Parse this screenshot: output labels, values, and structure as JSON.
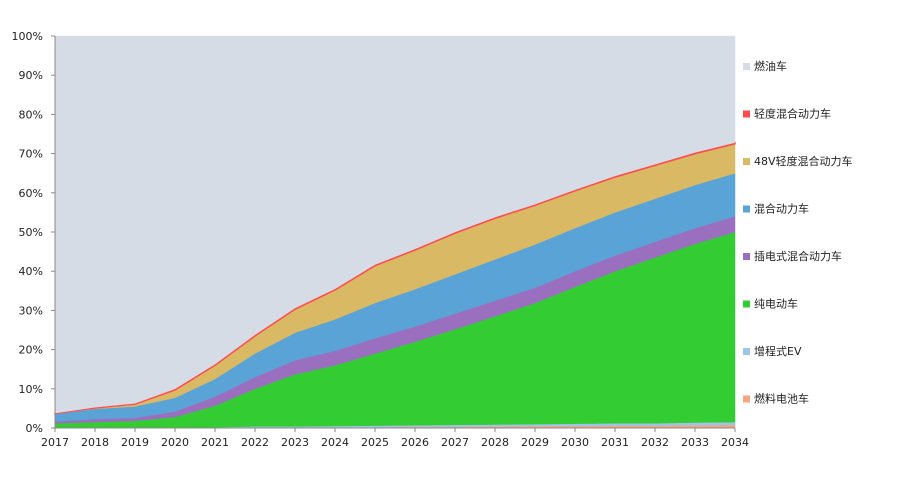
{
  "chart_data": {
    "type": "area",
    "stacked": true,
    "x": [
      "2017",
      "2018",
      "2019",
      "2020",
      "2021",
      "2022",
      "2023",
      "2024",
      "2025",
      "2026",
      "2027",
      "2028",
      "2029",
      "2030",
      "2031",
      "2032",
      "2033",
      "2034"
    ],
    "ylim": [
      0,
      100
    ],
    "yticks": [
      "0%",
      "10%",
      "20%",
      "30%",
      "40%",
      "50%",
      "60%",
      "70%",
      "80%",
      "90%",
      "100%"
    ],
    "grid": false,
    "legend_position": "right",
    "series": [
      {
        "name": "燃料电池车",
        "color": "#f4a582",
        "values": [
          0,
          0,
          0,
          0,
          0,
          0.1,
          0.1,
          0.2,
          0.2,
          0.3,
          0.3,
          0.4,
          0.5,
          0.5,
          0.6,
          0.6,
          0.7,
          0.8
        ]
      },
      {
        "name": "增程式EV",
        "color": "#9ec5e6",
        "values": [
          0,
          0,
          0,
          0,
          0.2,
          0.3,
          0.3,
          0.3,
          0.4,
          0.4,
          0.5,
          0.5,
          0.5,
          0.6,
          0.6,
          0.6,
          0.7,
          0.7
        ]
      },
      {
        "name": "纯电动车",
        "color": "#33cc33",
        "values": [
          1.2,
          1.5,
          1.8,
          2.8,
          5.5,
          9.6,
          13.3,
          15.5,
          18.4,
          21.3,
          24.4,
          27.6,
          30.9,
          34.9,
          38.8,
          42.3,
          45.6,
          48.5
        ]
      },
      {
        "name": "插电式混合动力车",
        "color": "#9b6fc0",
        "values": [
          0.5,
          0.8,
          0.8,
          1.4,
          2.3,
          3.0,
          3.6,
          3.7,
          3.9,
          3.9,
          4.0,
          4.0,
          3.9,
          4.0,
          4.0,
          4.0,
          4.0,
          4.0
        ]
      },
      {
        "name": "混合动力车",
        "color": "#5aa3d6",
        "values": [
          2.0,
          2.6,
          2.9,
          3.5,
          4.5,
          6.0,
          7.0,
          8.0,
          9.0,
          9.5,
          10.0,
          10.5,
          11.0,
          11.0,
          11.0,
          11.0,
          11.0,
          11.0
        ]
      },
      {
        "name": "48V轻度混合动力车",
        "color": "#d9b964",
        "values": [
          0,
          0.2,
          0.6,
          2.0,
          3.5,
          4.5,
          6.0,
          7.5,
          9.5,
          10.0,
          10.5,
          10.5,
          10.0,
          9.5,
          9.0,
          8.5,
          8.0,
          7.5
        ]
      },
      {
        "name": "轻度混合动力车",
        "color": "#ff4d4d",
        "values": [
          0.1,
          0.2,
          0.2,
          0.3,
          0.3,
          0.3,
          0.3,
          0.3,
          0.3,
          0.3,
          0.3,
          0.3,
          0.3,
          0.3,
          0.3,
          0.3,
          0.3,
          0.3
        ]
      },
      {
        "name": "燃油车",
        "color": "#d6dce6",
        "values": [
          96.2,
          94.7,
          93.7,
          90.0,
          83.7,
          76.2,
          69.4,
          64.5,
          58.3,
          54.3,
          50.0,
          46.2,
          42.9,
          39.2,
          35.7,
          32.7,
          29.7,
          27.2
        ]
      }
    ]
  }
}
